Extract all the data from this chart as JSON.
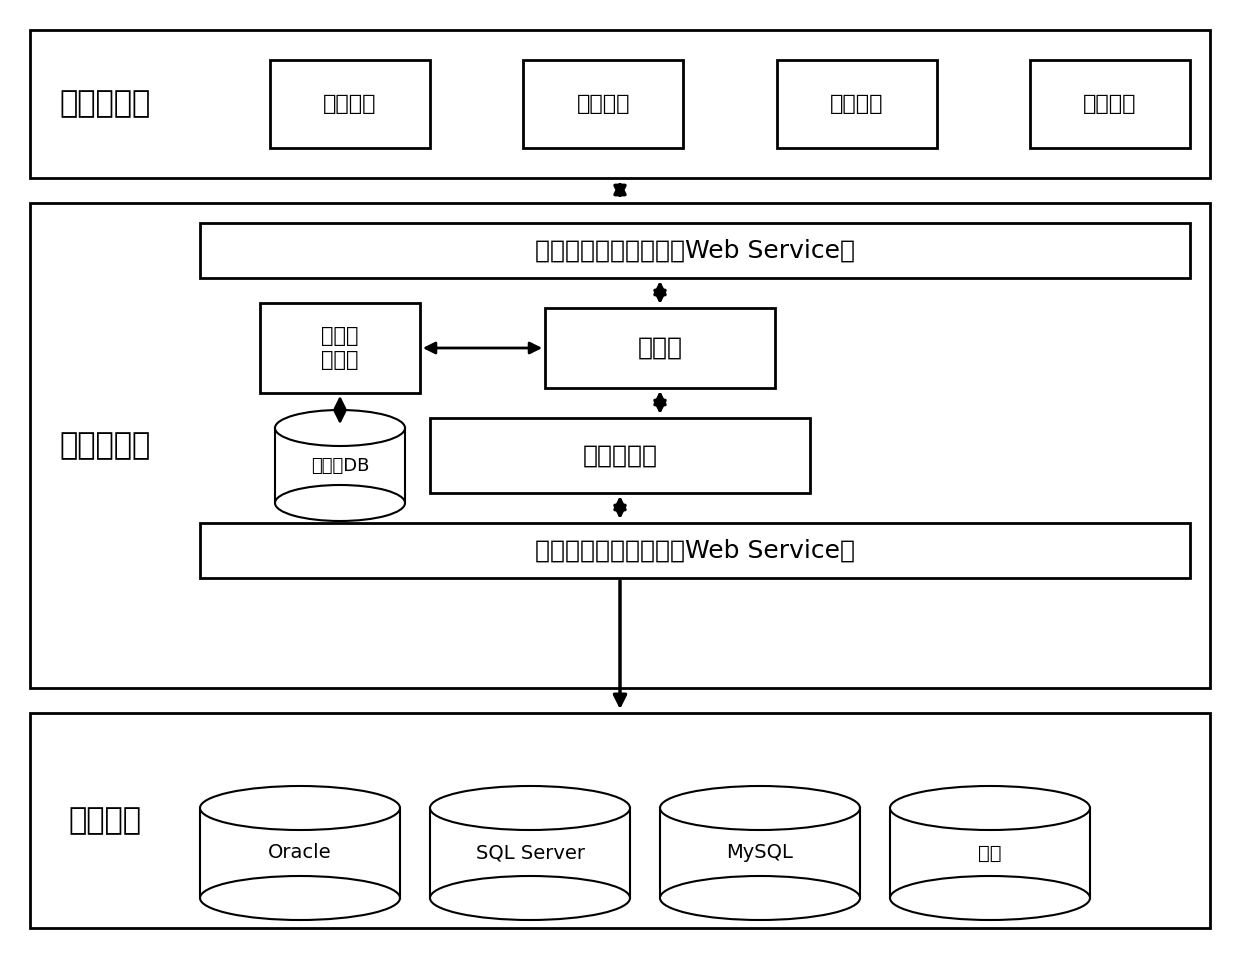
{
  "fig_width": 12.4,
  "fig_height": 9.58,
  "bg_color": "#ffffff",
  "layer1_label": "统一应用层",
  "layer2_label": "数据集成层",
  "layer3_label": "数据库层",
  "top_boxes": [
    "数据添加",
    "数据删除",
    "数据更新",
    "数据查询"
  ],
  "web_service_top": "应用层访问统一接口（Web Service）",
  "mediator_label": "中介器",
  "meta_manager_label": "元数据\n管理器",
  "meta_db_label": "元数据DB",
  "wrapper_label": "综合包装器",
  "web_service_bottom": "异构数据库统一接口（Web Service）",
  "db_labels": [
    "Oracle",
    "SQL Server",
    "MySQL",
    "其他"
  ],
  "border_color": "#000000",
  "fill_color": "#ffffff",
  "text_color": "#000000",
  "layer_border_color": "#000000"
}
